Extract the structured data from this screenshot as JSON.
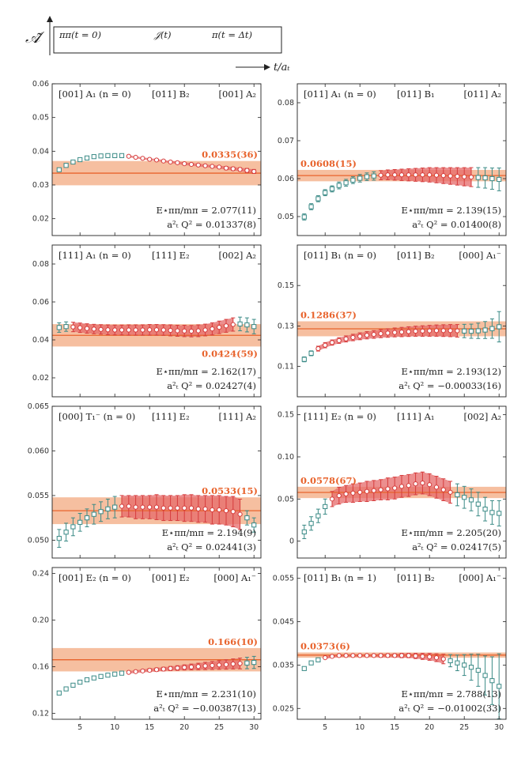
{
  "legend": {
    "ylabel": "𝒜̃",
    "left": "ππ(t = 0)",
    "mid": "𝒥(t)",
    "right": "π(t = Δt)",
    "xlabel": "t/aₜ"
  },
  "colors": {
    "fit_band": "#f5b48f",
    "fit_line": "#e8632c",
    "err_red": "#d63c3c",
    "band_red": "#e66a6a",
    "teal": "#3a8a86"
  },
  "chart_data": [
    {
      "type": "scatter",
      "title": "[001] A₁ (n = 0)",
      "mid": "[011] B₂",
      "right": "[001] A₂",
      "ylim": [
        0.015,
        0.06
      ],
      "yticks": [
        0.02,
        0.03,
        0.04,
        0.05,
        0.06
      ],
      "ytick_labels": [
        "0.02",
        "0.03",
        "0.04",
        "0.05",
        "0.06"
      ],
      "xlim": [
        1,
        31
      ],
      "xticks": [
        5,
        10,
        15,
        20,
        25,
        30
      ],
      "xtick_labels": [
        "5",
        "10",
        "15",
        "20",
        "25",
        "30"
      ],
      "fit": {
        "value": 0.0335,
        "err": 0.0036,
        "label": "0.0335(36)",
        "label_pos": "top-right"
      },
      "red_range": [
        12,
        30
      ],
      "x": [
        2,
        3,
        4,
        5,
        6,
        7,
        8,
        9,
        10,
        11,
        12,
        13,
        14,
        15,
        16,
        17,
        18,
        19,
        20,
        21,
        22,
        23,
        24,
        25,
        26,
        27,
        28,
        29,
        30
      ],
      "y": [
        0.0345,
        0.0358,
        0.0368,
        0.0375,
        0.038,
        0.0384,
        0.0386,
        0.0387,
        0.0387,
        0.0387,
        0.0385,
        0.0382,
        0.0379,
        0.0376,
        0.0374,
        0.0371,
        0.0368,
        0.0366,
        0.0363,
        0.0361,
        0.0359,
        0.0357,
        0.0355,
        0.0353,
        0.035,
        0.0348,
        0.0346,
        0.0343,
        0.034
      ],
      "yerr": [
        0.0003,
        0.0003,
        0.0003,
        0.0003,
        0.0003,
        0.0003,
        0.0003,
        0.0003,
        0.0003,
        0.0003,
        0.0003,
        0.0003,
        0.0003,
        0.0003,
        0.0003,
        0.0003,
        0.0003,
        0.0004,
        0.0004,
        0.0004,
        0.0004,
        0.0004,
        0.0004,
        0.0004,
        0.0005,
        0.0005,
        0.0005,
        0.0006,
        0.0006
      ],
      "energy": "E⋆ππ/mπ = 2.077(11)",
      "q2": "a²ₜ Q² = 0.01337(8)"
    },
    {
      "type": "scatter",
      "title": "[011] A₁ (n = 0)",
      "mid": "[011] B₁",
      "right": "[011] A₂",
      "ylim": [
        0.045,
        0.085
      ],
      "yticks": [
        0.05,
        0.06,
        0.07,
        0.08
      ],
      "ytick_labels": [
        "0.05",
        "0.06",
        "0.07",
        "0.08"
      ],
      "xlim": [
        1,
        31
      ],
      "xticks": [
        5,
        10,
        15,
        20,
        25,
        30
      ],
      "xtick_labels": [
        "5",
        "10",
        "15",
        "20",
        "25",
        "30"
      ],
      "fit": {
        "value": 0.0608,
        "err": 0.0015,
        "label": "0.0608(15)",
        "label_pos": "top-left"
      },
      "red_range": [
        13,
        26
      ],
      "x": [
        2,
        3,
        4,
        5,
        6,
        7,
        8,
        9,
        10,
        11,
        12,
        13,
        14,
        15,
        16,
        17,
        18,
        19,
        20,
        21,
        22,
        23,
        24,
        25,
        26,
        27,
        28,
        29,
        30
      ],
      "y": [
        0.0499,
        0.0526,
        0.0547,
        0.0563,
        0.0573,
        0.0582,
        0.0589,
        0.0596,
        0.0601,
        0.0605,
        0.0607,
        0.0609,
        0.061,
        0.061,
        0.061,
        0.061,
        0.061,
        0.061,
        0.061,
        0.0609,
        0.0608,
        0.0607,
        0.0606,
        0.0605,
        0.0604,
        0.0603,
        0.0602,
        0.06,
        0.0598
      ],
      "yerr": [
        0.0008,
        0.0008,
        0.0008,
        0.0008,
        0.0008,
        0.0009,
        0.0009,
        0.0009,
        0.001,
        0.001,
        0.0011,
        0.0012,
        0.0013,
        0.0014,
        0.0015,
        0.0016,
        0.0017,
        0.0018,
        0.0019,
        0.002,
        0.0021,
        0.0022,
        0.0023,
        0.0024,
        0.0025,
        0.0026,
        0.0027,
        0.0028,
        0.003
      ],
      "energy": "E⋆ππ/mπ = 2.139(15)",
      "q2": "a²ₜ Q² = 0.01400(8)"
    },
    {
      "type": "scatter",
      "title": "[111] A₁ (n = 0)",
      "mid": "[111] E₂",
      "right": "[002] A₂",
      "ylim": [
        0.01,
        0.09
      ],
      "yticks": [
        0.02,
        0.04,
        0.06,
        0.08
      ],
      "ytick_labels": [
        "0.02",
        "0.04",
        "0.06",
        "0.08"
      ],
      "xlim": [
        1,
        31
      ],
      "xticks": [
        5,
        10,
        15,
        20,
        25,
        30
      ],
      "xtick_labels": [
        "5",
        "10",
        "15",
        "20",
        "25",
        "30"
      ],
      "fit": {
        "value": 0.0424,
        "err": 0.0059,
        "label": "0.0424(59)",
        "label_pos": "bottom-right"
      },
      "red_range": [
        4,
        27
      ],
      "x": [
        2,
        3,
        4,
        5,
        6,
        7,
        8,
        9,
        10,
        11,
        12,
        13,
        14,
        15,
        16,
        17,
        18,
        19,
        20,
        21,
        22,
        23,
        24,
        25,
        26,
        27,
        28,
        29,
        30
      ],
      "y": [
        0.0465,
        0.047,
        0.0468,
        0.0464,
        0.046,
        0.0457,
        0.0455,
        0.0453,
        0.0452,
        0.0452,
        0.0452,
        0.0452,
        0.0452,
        0.0453,
        0.0453,
        0.0452,
        0.045,
        0.0448,
        0.0447,
        0.0446,
        0.0448,
        0.0452,
        0.0458,
        0.0466,
        0.0474,
        0.0481,
        0.0484,
        0.0479,
        0.047
      ],
      "yerr": [
        0.0025,
        0.0025,
        0.0025,
        0.0025,
        0.0025,
        0.0025,
        0.0025,
        0.0026,
        0.0026,
        0.0026,
        0.0027,
        0.0027,
        0.0027,
        0.0028,
        0.0028,
        0.0028,
        0.0029,
        0.0029,
        0.003,
        0.003,
        0.0031,
        0.0031,
        0.0032,
        0.0033,
        0.0034,
        0.0035,
        0.0036,
        0.0037,
        0.0038
      ],
      "energy": "E⋆ππ/mπ = 2.162(17)",
      "q2": "a²ₜ Q² = 0.02427(4)"
    },
    {
      "type": "scatter",
      "title": "[011] B₁ (n = 0)",
      "mid": "[011] B₂",
      "right": "[000] A₁⁻",
      "ylim": [
        0.095,
        0.17
      ],
      "yticks": [
        0.11,
        0.13,
        0.15
      ],
      "ytick_labels": [
        "0.11",
        "0.13",
        "0.15"
      ],
      "xlim": [
        1,
        31
      ],
      "xticks": [
        5,
        10,
        15,
        20,
        25,
        30
      ],
      "xtick_labels": [
        "5",
        "10",
        "15",
        "20",
        "25",
        "30"
      ],
      "fit": {
        "value": 0.1286,
        "err": 0.0037,
        "label": "0.1286(37)",
        "label_pos": "top-left"
      },
      "red_range": [
        4,
        24
      ],
      "x": [
        2,
        3,
        4,
        5,
        6,
        7,
        8,
        9,
        10,
        11,
        12,
        13,
        14,
        15,
        16,
        17,
        18,
        19,
        20,
        21,
        22,
        23,
        24,
        25,
        26,
        27,
        28,
        29,
        30
      ],
      "y": [
        0.1135,
        0.1165,
        0.1188,
        0.1205,
        0.1218,
        0.1228,
        0.1236,
        0.1243,
        0.1249,
        0.1254,
        0.1258,
        0.1262,
        0.1265,
        0.1268,
        0.127,
        0.1272,
        0.1274,
        0.1275,
        0.1276,
        0.1277,
        0.1277,
        0.1277,
        0.1276,
        0.1275,
        0.1274,
        0.1276,
        0.128,
        0.1287,
        0.1296
      ],
      "yerr": [
        0.0012,
        0.0012,
        0.0012,
        0.0013,
        0.0013,
        0.0014,
        0.0015,
        0.0016,
        0.0017,
        0.0018,
        0.0019,
        0.002,
        0.0021,
        0.0022,
        0.0023,
        0.0024,
        0.0025,
        0.0026,
        0.0027,
        0.0028,
        0.0029,
        0.003,
        0.0031,
        0.0033,
        0.0035,
        0.0038,
        0.0042,
        0.0048,
        0.0075
      ],
      "energy": "E⋆ππ/mπ = 2.193(12)",
      "q2": "a²ₜ Q² = −0.00033(16)"
    },
    {
      "type": "scatter",
      "title": "[000] T₁⁻ (n = 0)",
      "mid": "[111] E₂",
      "right": "[111] A₂",
      "ylim": [
        0.048,
        0.065
      ],
      "yticks": [
        0.05,
        0.055,
        0.06,
        0.065
      ],
      "ytick_labels": [
        "0.050",
        "0.055",
        "0.060",
        "0.065"
      ],
      "xlim": [
        1,
        31
      ],
      "xticks": [
        5,
        10,
        15,
        20,
        25,
        30
      ],
      "xtick_labels": [
        "5",
        "10",
        "15",
        "20",
        "25",
        "30"
      ],
      "fit": {
        "value": 0.0533,
        "err": 0.0015,
        "label": "0.0533(15)",
        "label_pos": "top-right"
      },
      "red_range": [
        11,
        28
      ],
      "x": [
        2,
        3,
        4,
        5,
        6,
        7,
        8,
        9,
        10,
        11,
        12,
        13,
        14,
        15,
        16,
        17,
        18,
        19,
        20,
        21,
        22,
        23,
        24,
        25,
        26,
        27,
        28,
        29,
        30
      ],
      "y": [
        0.0502,
        0.0509,
        0.0515,
        0.052,
        0.0525,
        0.0529,
        0.0532,
        0.0535,
        0.0537,
        0.0538,
        0.0538,
        0.0537,
        0.0537,
        0.0537,
        0.0537,
        0.0536,
        0.0536,
        0.0536,
        0.0536,
        0.0536,
        0.0535,
        0.0535,
        0.0534,
        0.0534,
        0.0533,
        0.0532,
        0.0529,
        0.0525,
        0.0517
      ],
      "yerr": [
        0.001,
        0.001,
        0.001,
        0.001,
        0.001,
        0.0011,
        0.0011,
        0.0011,
        0.0012,
        0.0012,
        0.0012,
        0.0013,
        0.0013,
        0.0013,
        0.0014,
        0.0014,
        0.0014,
        0.0014,
        0.0015,
        0.0015,
        0.0015,
        0.0015,
        0.0016,
        0.0016,
        0.0016,
        0.0017,
        0.0017,
        0.0008,
        0.0008
      ],
      "energy": "E⋆ππ/mπ = 2.194(9)",
      "q2": "a²ₜ Q² = 0.02441(3)"
    },
    {
      "type": "scatter",
      "title": "[111] E₂ (n = 0)",
      "mid": "[111] A₁",
      "right": "[002] A₂",
      "ylim": [
        -0.02,
        0.16
      ],
      "yticks": [
        0,
        0.05,
        0.1,
        0.15
      ],
      "ytick_labels": [
        "0",
        "0.05",
        "0.10",
        "0.15"
      ],
      "xlim": [
        1,
        31
      ],
      "xticks": [
        5,
        10,
        15,
        20,
        25,
        30
      ],
      "xtick_labels": [
        "5",
        "10",
        "15",
        "20",
        "25",
        "30"
      ],
      "fit": {
        "value": 0.0578,
        "err": 0.0067,
        "label": "0.0578(67)",
        "label_pos": "top-left"
      },
      "red_range": [
        6,
        23
      ],
      "x": [
        2,
        3,
        4,
        5,
        6,
        7,
        8,
        9,
        10,
        11,
        12,
        13,
        14,
        15,
        16,
        17,
        18,
        19,
        20,
        21,
        22,
        23,
        24,
        25,
        26,
        27,
        28,
        29,
        30
      ],
      "y": [
        0.011,
        0.021,
        0.03,
        0.041,
        0.05,
        0.054,
        0.056,
        0.057,
        0.058,
        0.059,
        0.06,
        0.061,
        0.062,
        0.063,
        0.065,
        0.066,
        0.068,
        0.069,
        0.067,
        0.064,
        0.061,
        0.058,
        0.055,
        0.052,
        0.049,
        0.044,
        0.038,
        0.034,
        0.033
      ],
      "yerr": [
        0.008,
        0.008,
        0.008,
        0.009,
        0.009,
        0.01,
        0.01,
        0.011,
        0.011,
        0.012,
        0.012,
        0.012,
        0.013,
        0.013,
        0.013,
        0.013,
        0.013,
        0.013,
        0.013,
        0.013,
        0.013,
        0.013,
        0.013,
        0.013,
        0.013,
        0.014,
        0.014,
        0.014,
        0.015
      ],
      "energy": "E⋆ππ/mπ = 2.205(20)",
      "q2": "a²ₜ Q² = 0.02417(5)"
    },
    {
      "type": "scatter",
      "title": "[001] E₂ (n = 0)",
      "mid": "[001] E₂",
      "right": "[000] A₁⁻",
      "ylim": [
        0.115,
        0.245
      ],
      "yticks": [
        0.12,
        0.16,
        0.2,
        0.24
      ],
      "ytick_labels": [
        "0.12",
        "0.16",
        "0.20",
        "0.24"
      ],
      "xlim": [
        1,
        31
      ],
      "xticks": [
        5,
        10,
        15,
        20,
        25,
        30
      ],
      "xtick_labels": [
        "5",
        "10",
        "15",
        "20",
        "25",
        "30"
      ],
      "fit": {
        "value": 0.166,
        "err": 0.01,
        "label": "0.166(10)",
        "label_pos": "top-right"
      },
      "red_range": [
        12,
        28
      ],
      "x": [
        2,
        3,
        4,
        5,
        6,
        7,
        8,
        9,
        10,
        11,
        12,
        13,
        14,
        15,
        16,
        17,
        18,
        19,
        20,
        21,
        22,
        23,
        24,
        25,
        26,
        27,
        28,
        29,
        30
      ],
      "y": [
        0.1375,
        0.141,
        0.1442,
        0.1468,
        0.1488,
        0.1504,
        0.1517,
        0.1528,
        0.1537,
        0.1545,
        0.1552,
        0.1558,
        0.1564,
        0.157,
        0.1575,
        0.158,
        0.1585,
        0.1589,
        0.1594,
        0.1598,
        0.1602,
        0.1607,
        0.1611,
        0.1615,
        0.1619,
        0.1624,
        0.1628,
        0.1632,
        0.1637
      ],
      "yerr": [
        0.0008,
        0.0008,
        0.0008,
        0.0008,
        0.0008,
        0.0009,
        0.0009,
        0.0009,
        0.001,
        0.001,
        0.0011,
        0.0012,
        0.0013,
        0.0014,
        0.0015,
        0.0016,
        0.0018,
        0.002,
        0.0022,
        0.0025,
        0.0028,
        0.0031,
        0.0034,
        0.0037,
        0.004,
        0.0043,
        0.0046,
        0.0049,
        0.0052
      ],
      "energy": "E⋆ππ/mπ = 2.231(10)",
      "q2": "a²ₜ Q² = −0.00387(13)"
    },
    {
      "type": "scatter",
      "title": "[011] B₁ (n = 1)",
      "mid": "[011] B₂",
      "right": "[000] A₁⁻",
      "ylim": [
        0.0225,
        0.0575
      ],
      "yticks": [
        0.025,
        0.035,
        0.045,
        0.055
      ],
      "ytick_labels": [
        "0.025",
        "0.035",
        "0.045",
        "0.055"
      ],
      "xlim": [
        1,
        31
      ],
      "xticks": [
        5,
        10,
        15,
        20,
        25,
        30
      ],
      "xtick_labels": [
        "5",
        "10",
        "15",
        "20",
        "25",
        "30"
      ],
      "fit": {
        "value": 0.0373,
        "err": 0.0006,
        "label": "0.0373(6)",
        "label_pos": "top-left"
      },
      "red_range": [
        5,
        22
      ],
      "x": [
        2,
        3,
        4,
        5,
        6,
        7,
        8,
        9,
        10,
        11,
        12,
        13,
        14,
        15,
        16,
        17,
        18,
        19,
        20,
        21,
        22,
        23,
        24,
        25,
        26,
        27,
        28,
        29,
        30
      ],
      "y": [
        0.0342,
        0.0355,
        0.0362,
        0.0367,
        0.037,
        0.0372,
        0.0372,
        0.0372,
        0.0372,
        0.0372,
        0.0372,
        0.0372,
        0.0372,
        0.0372,
        0.0372,
        0.0372,
        0.0371,
        0.037,
        0.0369,
        0.0367,
        0.0364,
        0.036,
        0.0355,
        0.035,
        0.0345,
        0.0338,
        0.0326,
        0.0314,
        0.0301
      ],
      "yerr": [
        0.0003,
        0.0003,
        0.0003,
        0.0003,
        0.0003,
        0.0003,
        0.0003,
        0.0003,
        0.0003,
        0.0003,
        0.0003,
        0.0004,
        0.0004,
        0.0004,
        0.0005,
        0.0005,
        0.0006,
        0.0007,
        0.0008,
        0.0009,
        0.0011,
        0.0014,
        0.0018,
        0.0024,
        0.003,
        0.0037,
        0.0045,
        0.0055,
        0.0075
      ],
      "energy": "E⋆ππ/mπ = 2.788(13)",
      "q2": "a²ₜ Q² = −0.01002(33)"
    }
  ]
}
